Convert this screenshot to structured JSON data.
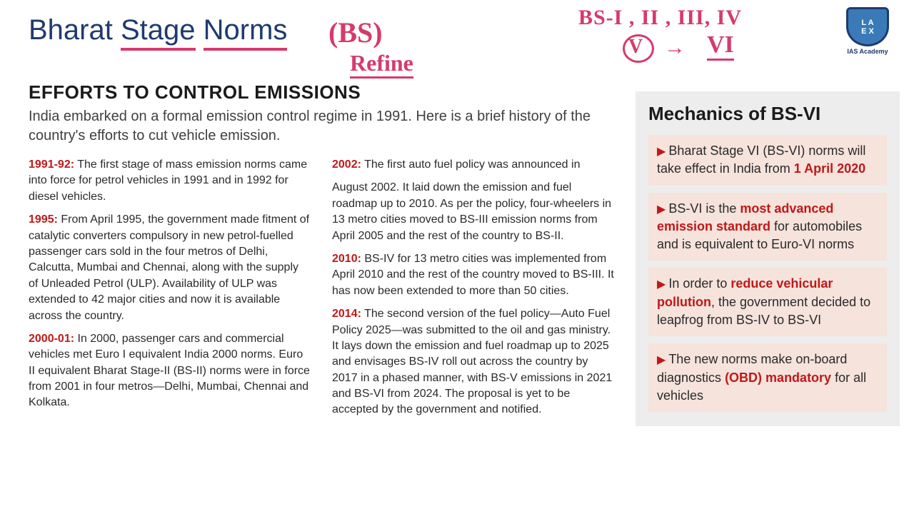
{
  "title_parts": {
    "w1": "Bharat",
    "w2": "Stage",
    "w3": "Norms"
  },
  "handwriting": {
    "bs": "(BS)",
    "refine": "Refine",
    "list": "BS-I , II , III, IV",
    "v": "V",
    "arrow": "→",
    "vi": "VI"
  },
  "logo": {
    "top": "L A",
    "mid": "E X",
    "sub": "IAS Academy"
  },
  "heading": "EFFORTS TO CONTROL EMISSIONS",
  "intro": "India embarked on a formal emission control regime in 1991. Here is a brief history of the country's efforts to cut vehicle emission.",
  "timeline": [
    {
      "year": "1991-92:",
      "text": " The first stage of mass emission norms came into force for petrol vehicles in 1991 and in 1992 for diesel vehicles."
    },
    {
      "year": "1995:",
      "text": " From April 1995, the government made fitment of catalytic converters compulsory in new petrol-fuelled passenger cars sold in the four metros of Delhi, Calcutta, Mumbai and Chennai, along with the supply of Unleaded Petrol (ULP). Availability of ULP was extended to 42 major cities and now it is available across the country."
    },
    {
      "year": "2000-01:",
      "text": " In 2000, passenger cars and commercial vehicles met Euro I equivalent India 2000 norms. Euro II equivalent Bharat Stage-II (BS-II) norms were in force from 2001 in four metros—Delhi, Mumbai, Chennai and Kolkata."
    },
    {
      "year": "2002:",
      "text": " The first auto fuel policy was announced in "
    },
    {
      "year": "",
      "text": "August 2002. It laid down the emission and fuel roadmap up to 2010. As per the policy, four-wheelers in 13 metro cities moved to BS-III emission norms from April 2005 and the rest of the country to BS-II."
    },
    {
      "year": "2010:",
      "text": " BS-IV for 13 metro cities was implemented from April 2010 and the rest of the country moved to BS-III. It has now been extended to more than 50 cities."
    },
    {
      "year": "2014:",
      "text": " The second version of the fuel policy—Auto Fuel Policy 2025—was submitted to the oil and gas ministry. It lays down the emission and fuel roadmap up to 2025 and envisages BS-IV roll out across the country by 2017 in a phased manner, with BS-V emissions in 2021 and BS-VI from 2024. The proposal is yet to be accepted by the government and notified."
    }
  ],
  "sidebar": {
    "title": "Mechanics of BS-VI",
    "items": [
      {
        "pre": "Bharat Stage VI (BS-VI) norms will take effect in India from ",
        "emph": "1 April 2020",
        "post": ""
      },
      {
        "pre": "BS-VI is the ",
        "emph": "most advanced emission standard",
        "post": " for automobiles and is equivalent to Euro-VI norms"
      },
      {
        "pre": "In order to ",
        "emph": "reduce vehicular pollution",
        "post": ", the government decided to leapfrog from BS-IV to BS-VI"
      },
      {
        "pre": "The new norms make on-board diagnostics ",
        "emph": "(OBD) mandatory",
        "post": " for all vehicles"
      }
    ]
  },
  "colors": {
    "title": "#1f3a6e",
    "accent": "#d63a6b",
    "year": "#c01818",
    "sidebar_bg": "#ededed",
    "sidebar_item_bg": "#f5e3dc"
  }
}
